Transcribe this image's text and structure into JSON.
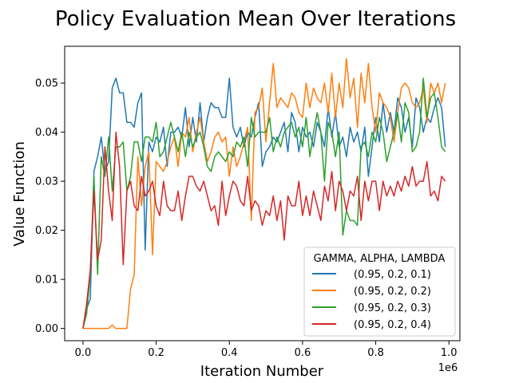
{
  "chart_data": {
    "type": "line",
    "title": "Policy Evaluation Mean Over Iterations",
    "xlabel": "Iteration Number",
    "ylabel": "Value Function",
    "x_offset_text": "1e6",
    "xlim": [
      -0.05,
      1.03
    ],
    "ylim": [
      -0.0025,
      0.0575
    ],
    "xticks": [
      0.0,
      0.2,
      0.4,
      0.6,
      0.8,
      1.0
    ],
    "xtick_labels": [
      "0.0",
      "0.2",
      "0.4",
      "0.6",
      "0.8",
      "1.0"
    ],
    "yticks": [
      0.0,
      0.01,
      0.02,
      0.03,
      0.04,
      0.05
    ],
    "ytick_labels": [
      "0.00",
      "0.01",
      "0.02",
      "0.03",
      "0.04",
      "0.05"
    ],
    "legend": {
      "title": "GAMMA, ALPHA, LAMBDA",
      "location": "lower-right"
    },
    "grid": false,
    "series": [
      {
        "name": "(0.95, 0.2, 0.1)",
        "color": "#1f77b4",
        "x": [
          0.0,
          0.01,
          0.02,
          0.03,
          0.04,
          0.05,
          0.06,
          0.07,
          0.08,
          0.09,
          0.1,
          0.11,
          0.12,
          0.13,
          0.14,
          0.15,
          0.16,
          0.17,
          0.18,
          0.19,
          0.2,
          0.21,
          0.22,
          0.23,
          0.24,
          0.25,
          0.26,
          0.27,
          0.28,
          0.29,
          0.3,
          0.31,
          0.32,
          0.33,
          0.34,
          0.35,
          0.36,
          0.37,
          0.38,
          0.39,
          0.4,
          0.41,
          0.42,
          0.43,
          0.44,
          0.45,
          0.46,
          0.47,
          0.48,
          0.49,
          0.5,
          0.51,
          0.52,
          0.53,
          0.54,
          0.55,
          0.56,
          0.57,
          0.58,
          0.59,
          0.6,
          0.61,
          0.62,
          0.63,
          0.64,
          0.65,
          0.66,
          0.67,
          0.68,
          0.69,
          0.7,
          0.71,
          0.72,
          0.73,
          0.74,
          0.75,
          0.76,
          0.77,
          0.78,
          0.79,
          0.8,
          0.81,
          0.82,
          0.83,
          0.84,
          0.85,
          0.86,
          0.87,
          0.88,
          0.89,
          0.9,
          0.91,
          0.92,
          0.93,
          0.94,
          0.95,
          0.96,
          0.97,
          0.98,
          0.99
        ],
        "y": [
          0.0,
          0.004,
          0.006,
          0.032,
          0.035,
          0.039,
          0.032,
          0.034,
          0.049,
          0.051,
          0.048,
          0.048,
          0.042,
          0.042,
          0.041,
          0.046,
          0.048,
          0.016,
          0.038,
          0.036,
          0.039,
          0.038,
          0.041,
          0.033,
          0.04,
          0.04,
          0.041,
          0.039,
          0.045,
          0.037,
          0.043,
          0.038,
          0.046,
          0.038,
          0.043,
          0.046,
          0.045,
          0.045,
          0.043,
          0.043,
          0.051,
          0.041,
          0.039,
          0.041,
          0.037,
          0.04,
          0.039,
          0.043,
          0.046,
          0.033,
          0.036,
          0.037,
          0.039,
          0.038,
          0.04,
          0.042,
          0.036,
          0.044,
          0.042,
          0.036,
          0.041,
          0.039,
          0.04,
          0.037,
          0.042,
          0.04,
          0.037,
          0.045,
          0.039,
          0.044,
          0.037,
          0.039,
          0.035,
          0.041,
          0.038,
          0.04,
          0.036,
          0.041,
          0.031,
          0.037,
          0.043,
          0.038,
          0.046,
          0.04,
          0.044,
          0.04,
          0.047,
          0.045,
          0.04,
          0.043,
          0.037,
          0.047,
          0.045,
          0.04,
          0.043,
          0.042,
          0.045,
          0.047,
          0.045,
          0.037
        ]
      },
      {
        "name": "(0.95, 0.2, 0.2)",
        "color": "#ff7f0e",
        "x": [
          0.0,
          0.01,
          0.02,
          0.03,
          0.04,
          0.05,
          0.06,
          0.07,
          0.08,
          0.09,
          0.1,
          0.11,
          0.12,
          0.13,
          0.14,
          0.15,
          0.16,
          0.17,
          0.18,
          0.19,
          0.2,
          0.21,
          0.22,
          0.23,
          0.24,
          0.25,
          0.26,
          0.27,
          0.28,
          0.29,
          0.3,
          0.31,
          0.32,
          0.33,
          0.34,
          0.35,
          0.36,
          0.37,
          0.38,
          0.39,
          0.4,
          0.41,
          0.42,
          0.43,
          0.44,
          0.45,
          0.46,
          0.47,
          0.48,
          0.49,
          0.5,
          0.51,
          0.52,
          0.53,
          0.54,
          0.55,
          0.56,
          0.57,
          0.58,
          0.59,
          0.6,
          0.61,
          0.62,
          0.63,
          0.64,
          0.65,
          0.66,
          0.67,
          0.68,
          0.69,
          0.7,
          0.71,
          0.72,
          0.73,
          0.74,
          0.75,
          0.76,
          0.77,
          0.78,
          0.79,
          0.8,
          0.81,
          0.82,
          0.83,
          0.84,
          0.85,
          0.86,
          0.87,
          0.88,
          0.89,
          0.9,
          0.91,
          0.92,
          0.93,
          0.94,
          0.95,
          0.96,
          0.97,
          0.98,
          0.99
        ],
        "y": [
          0.0,
          0.0,
          0.0,
          0.0,
          0.0,
          0.0,
          0.0,
          0.0,
          0.0007,
          0.0,
          0.0,
          0.0,
          0.0,
          0.008,
          0.011,
          0.035,
          0.025,
          0.033,
          0.036,
          0.015,
          0.034,
          0.033,
          0.032,
          0.034,
          0.037,
          0.039,
          0.033,
          0.04,
          0.039,
          0.043,
          0.036,
          0.04,
          0.043,
          0.038,
          0.034,
          0.036,
          0.039,
          0.04,
          0.038,
          0.039,
          0.031,
          0.037,
          0.033,
          0.035,
          0.038,
          0.041,
          0.022,
          0.044,
          0.045,
          0.049,
          0.038,
          0.046,
          0.054,
          0.045,
          0.047,
          0.046,
          0.045,
          0.048,
          0.047,
          0.044,
          0.043,
          0.05,
          0.045,
          0.049,
          0.047,
          0.046,
          0.05,
          0.044,
          0.052,
          0.043,
          0.05,
          0.045,
          0.055,
          0.047,
          0.051,
          0.041,
          0.052,
          0.046,
          0.054,
          0.045,
          0.04,
          0.048,
          0.046,
          0.045,
          0.043,
          0.038,
          0.044,
          0.049,
          0.05,
          0.049,
          0.046,
          0.045,
          0.046,
          0.049,
          0.042,
          0.05,
          0.048,
          0.05,
          0.046,
          0.05
        ]
      },
      {
        "name": "(0.95, 0.2, 0.3)",
        "color": "#2ca02c",
        "x": [
          0.0,
          0.01,
          0.02,
          0.03,
          0.04,
          0.05,
          0.06,
          0.07,
          0.08,
          0.09,
          0.1,
          0.11,
          0.12,
          0.13,
          0.14,
          0.15,
          0.16,
          0.17,
          0.18,
          0.19,
          0.2,
          0.21,
          0.22,
          0.23,
          0.24,
          0.25,
          0.26,
          0.27,
          0.28,
          0.29,
          0.3,
          0.31,
          0.32,
          0.33,
          0.34,
          0.35,
          0.36,
          0.37,
          0.38,
          0.39,
          0.4,
          0.41,
          0.42,
          0.43,
          0.44,
          0.45,
          0.46,
          0.47,
          0.48,
          0.49,
          0.5,
          0.51,
          0.52,
          0.53,
          0.54,
          0.55,
          0.56,
          0.57,
          0.58,
          0.59,
          0.6,
          0.61,
          0.62,
          0.63,
          0.64,
          0.65,
          0.66,
          0.67,
          0.68,
          0.69,
          0.7,
          0.71,
          0.72,
          0.73,
          0.74,
          0.75,
          0.76,
          0.77,
          0.78,
          0.79,
          0.8,
          0.81,
          0.82,
          0.83,
          0.84,
          0.85,
          0.86,
          0.87,
          0.88,
          0.89,
          0.9,
          0.91,
          0.92,
          0.93,
          0.94,
          0.95,
          0.96,
          0.97,
          0.98,
          0.99
        ],
        "y": [
          0.0,
          0.003,
          0.011,
          0.031,
          0.011,
          0.035,
          0.031,
          0.039,
          0.028,
          0.037,
          0.037,
          0.038,
          0.028,
          0.031,
          0.038,
          0.038,
          0.034,
          0.039,
          0.039,
          0.038,
          0.042,
          0.035,
          0.036,
          0.039,
          0.042,
          0.039,
          0.036,
          0.04,
          0.035,
          0.04,
          0.037,
          0.039,
          0.04,
          0.037,
          0.033,
          0.032,
          0.035,
          0.036,
          0.035,
          0.034,
          0.036,
          0.035,
          0.038,
          0.037,
          0.039,
          0.033,
          0.043,
          0.039,
          0.04,
          0.04,
          0.04,
          0.043,
          0.036,
          0.039,
          0.037,
          0.04,
          0.041,
          0.042,
          0.039,
          0.041,
          0.037,
          0.043,
          0.035,
          0.04,
          0.044,
          0.04,
          0.03,
          0.042,
          0.04,
          0.035,
          0.04,
          0.019,
          0.024,
          0.022,
          0.022,
          0.021,
          0.037,
          0.038,
          0.035,
          0.04,
          0.038,
          0.043,
          0.04,
          0.034,
          0.037,
          0.04,
          0.044,
          0.038,
          0.046,
          0.044,
          0.036,
          0.037,
          0.04,
          0.051,
          0.043,
          0.047,
          0.048,
          0.043,
          0.037,
          0.036
        ]
      },
      {
        "name": "(0.95, 0.2, 0.4)",
        "color": "#d62728",
        "x": [
          0.0,
          0.01,
          0.02,
          0.03,
          0.04,
          0.05,
          0.06,
          0.07,
          0.08,
          0.09,
          0.1,
          0.11,
          0.12,
          0.13,
          0.14,
          0.15,
          0.16,
          0.17,
          0.18,
          0.19,
          0.2,
          0.21,
          0.22,
          0.23,
          0.24,
          0.25,
          0.26,
          0.27,
          0.28,
          0.29,
          0.3,
          0.31,
          0.32,
          0.33,
          0.34,
          0.35,
          0.36,
          0.37,
          0.38,
          0.39,
          0.4,
          0.41,
          0.42,
          0.43,
          0.44,
          0.45,
          0.46,
          0.47,
          0.48,
          0.49,
          0.5,
          0.51,
          0.52,
          0.53,
          0.54,
          0.55,
          0.56,
          0.57,
          0.58,
          0.59,
          0.6,
          0.61,
          0.62,
          0.63,
          0.64,
          0.65,
          0.66,
          0.67,
          0.68,
          0.69,
          0.7,
          0.71,
          0.72,
          0.73,
          0.74,
          0.75,
          0.76,
          0.77,
          0.78,
          0.79,
          0.8,
          0.81,
          0.82,
          0.83,
          0.84,
          0.85,
          0.86,
          0.87,
          0.88,
          0.89,
          0.9,
          0.91,
          0.92,
          0.93,
          0.94,
          0.95,
          0.96,
          0.97,
          0.98,
          0.99
        ],
        "y": [
          0.0,
          0.005,
          0.012,
          0.028,
          0.014,
          0.018,
          0.037,
          0.028,
          0.022,
          0.04,
          0.033,
          0.013,
          0.028,
          0.03,
          0.025,
          0.024,
          0.031,
          0.027,
          0.028,
          0.03,
          0.025,
          0.023,
          0.03,
          0.025,
          0.024,
          0.024,
          0.028,
          0.022,
          0.027,
          0.031,
          0.031,
          0.029,
          0.028,
          0.03,
          0.027,
          0.024,
          0.025,
          0.021,
          0.03,
          0.023,
          0.027,
          0.03,
          0.029,
          0.026,
          0.025,
          0.031,
          0.024,
          0.026,
          0.025,
          0.021,
          0.024,
          0.023,
          0.027,
          0.022,
          0.026,
          0.018,
          0.027,
          0.025,
          0.025,
          0.03,
          0.023,
          0.027,
          0.023,
          0.028,
          0.025,
          0.022,
          0.029,
          0.026,
          0.032,
          0.024,
          0.03,
          0.028,
          0.024,
          0.028,
          0.027,
          0.031,
          0.022,
          0.03,
          0.026,
          0.03,
          0.03,
          0.024,
          0.03,
          0.027,
          0.029,
          0.027,
          0.03,
          0.028,
          0.031,
          0.029,
          0.033,
          0.029,
          0.03,
          0.03,
          0.034,
          0.027,
          0.028,
          0.026,
          0.031,
          0.03
        ]
      }
    ]
  }
}
